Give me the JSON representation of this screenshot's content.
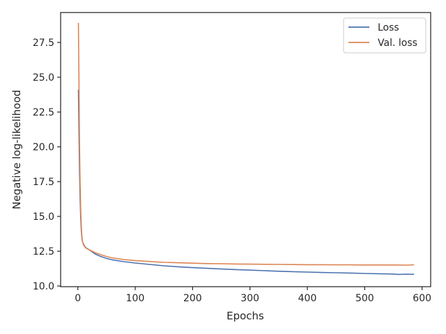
{
  "chart_data": {
    "type": "line",
    "title": "",
    "xlabel": "Epochs",
    "ylabel": "Negative log-likelihood",
    "xlim": [
      -30,
      615
    ],
    "ylim": [
      9.95,
      29.65
    ],
    "xticks": [
      0,
      100,
      200,
      300,
      400,
      500,
      600
    ],
    "xtick_labels": [
      "0",
      "100",
      "200",
      "300",
      "400",
      "500",
      "600"
    ],
    "yticks": [
      10.0,
      12.5,
      15.0,
      17.5,
      20.0,
      22.5,
      25.0,
      27.5
    ],
    "ytick_labels": [
      "10.0",
      "12.5",
      "15.0",
      "17.5",
      "20.0",
      "22.5",
      "25.0",
      "27.5"
    ],
    "grid": false,
    "legend_position": "top-right",
    "series": [
      {
        "name": "Loss",
        "color": "#4c72b0",
        "x": [
          1,
          2,
          3,
          4,
          5,
          6,
          7,
          8,
          10,
          12,
          15,
          20,
          25,
          30,
          40,
          50,
          60,
          80,
          100,
          125,
          150,
          175,
          200,
          225,
          250,
          275,
          300,
          325,
          350,
          375,
          400,
          425,
          450,
          475,
          500,
          525,
          550,
          560,
          570,
          586
        ],
        "y": [
          24.1,
          21.0,
          18.2,
          16.2,
          14.9,
          14.0,
          13.5,
          13.2,
          13.0,
          12.85,
          12.72,
          12.6,
          12.45,
          12.3,
          12.12,
          11.98,
          11.88,
          11.75,
          11.65,
          11.55,
          11.45,
          11.38,
          11.32,
          11.27,
          11.22,
          11.18,
          11.14,
          11.1,
          11.06,
          11.03,
          11.0,
          10.97,
          10.95,
          10.93,
          10.9,
          10.88,
          10.86,
          10.83,
          10.85,
          10.84
        ]
      },
      {
        "name": "Val. loss",
        "color": "#dd8452",
        "x": [
          1,
          2,
          3,
          4,
          5,
          6,
          7,
          8,
          10,
          12,
          15,
          20,
          25,
          30,
          40,
          50,
          60,
          80,
          100,
          125,
          150,
          175,
          200,
          225,
          250,
          275,
          300,
          325,
          350,
          375,
          400,
          425,
          450,
          475,
          500,
          525,
          550,
          575,
          586
        ],
        "y": [
          28.9,
          24.5,
          20.0,
          17.3,
          15.5,
          14.3,
          13.6,
          13.2,
          12.95,
          12.82,
          12.7,
          12.6,
          12.5,
          12.4,
          12.25,
          12.12,
          12.02,
          11.9,
          11.82,
          11.76,
          11.7,
          11.67,
          11.64,
          11.61,
          11.6,
          11.58,
          11.57,
          11.56,
          11.55,
          11.54,
          11.53,
          11.53,
          11.52,
          11.52,
          11.51,
          11.51,
          11.51,
          11.5,
          11.52
        ]
      }
    ]
  }
}
